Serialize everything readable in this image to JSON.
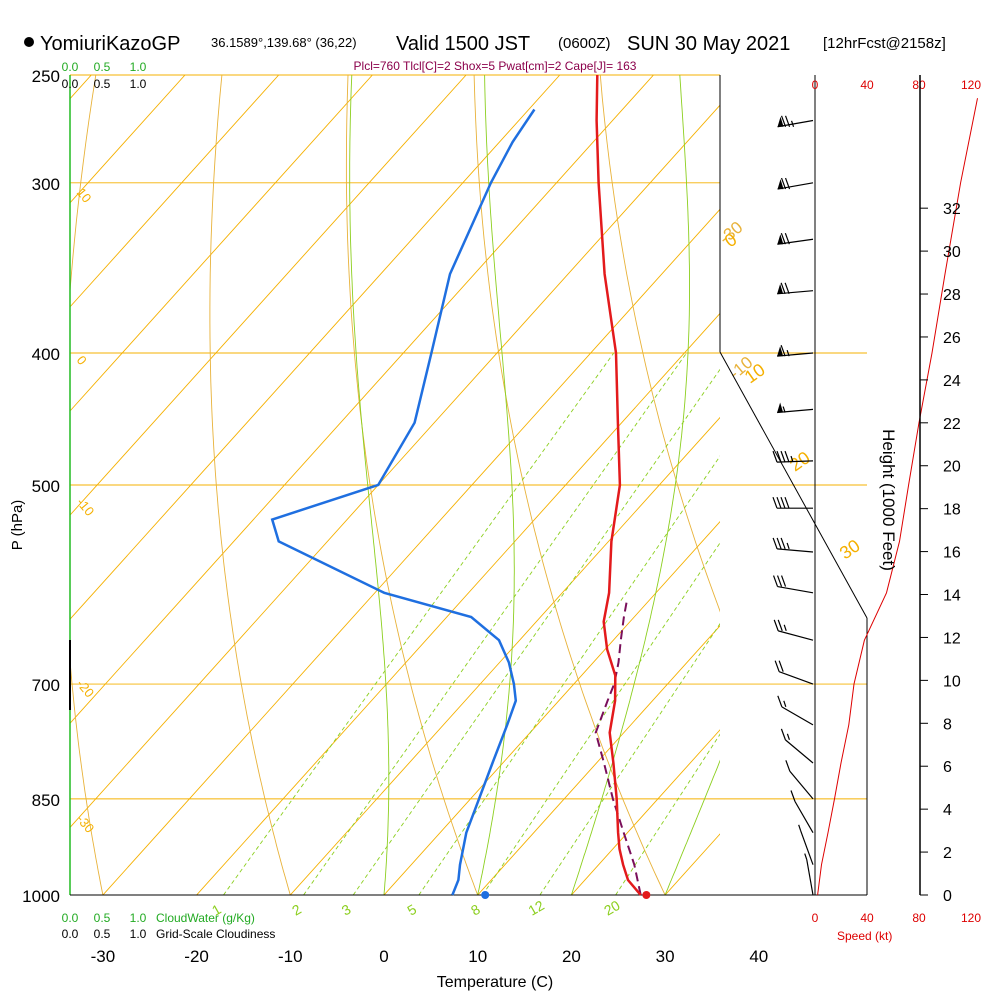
{
  "header": {
    "station": "YomiuriKazoGP",
    "coords": "36.1589°,139.68° (36,22)",
    "valid_prefix": "Valid 1500 JST",
    "valid_z": "(0600Z)",
    "valid_date": "SUN 30 May 2021",
    "forecast": "[12hrFcst@2158z]",
    "params": "Plcl=760 Tlcl[C]=2 Shox=5 Pwat[cm]=2 Cape[J]= 163"
  },
  "labels": {
    "ylabel": "P (hPa)",
    "xlabel": "Temperature (C)",
    "height_label": "Height (1000 Feet)",
    "speed_label": "Speed (kt)",
    "cloudwater_label": "CloudWater (g/Kg)",
    "cloudiness_label": "Grid-Scale Cloudiness",
    "cw_ticks": [
      "0.0",
      "0.5",
      "1.0"
    ],
    "cloud_ticks": [
      "0.0",
      "0.5",
      "1.0"
    ],
    "speed_ticks": [
      "0",
      "40",
      "80",
      "120"
    ]
  },
  "colors": {
    "temperature": "#e31a1c",
    "dewpoint": "#1f6fe0",
    "parcel": "#7a0f5a",
    "isotherm_isobar": "#f5b000",
    "dry_adiabat": "#e8b23a",
    "moist_adiabat": "#8ccf1f",
    "mixing_ratio": "#8ccf1f",
    "params_text": "#8b004b",
    "cloud_text": "#22aa22",
    "speed_text": "#dd0000"
  },
  "chart_data": {
    "type": "skew-t sounding",
    "xlim": [
      -35,
      36
    ],
    "pressure_range": [
      1000,
      250
    ],
    "x_ticks": [
      -30,
      -20,
      -10,
      0,
      10,
      20,
      30,
      40
    ],
    "pressure_ticks": [
      1000,
      850,
      700,
      500,
      400,
      300,
      250
    ],
    "height_ticks": [
      0,
      2,
      4,
      6,
      8,
      10,
      12,
      14,
      16,
      18,
      20,
      22,
      24,
      26,
      28,
      30,
      32
    ],
    "temperature": [
      {
        "p": 1000,
        "t": 27.4
      },
      {
        "p": 975,
        "t": 24.6
      },
      {
        "p": 950,
        "t": 22.6
      },
      {
        "p": 925,
        "t": 20.7
      },
      {
        "p": 900,
        "t": 19.0
      },
      {
        "p": 850,
        "t": 15.6
      },
      {
        "p": 800,
        "t": 11.8
      },
      {
        "p": 760,
        "t": 8.5
      },
      {
        "p": 720,
        "t": 6.0
      },
      {
        "p": 690,
        "t": 3.6
      },
      {
        "p": 660,
        "t": 0.2
      },
      {
        "p": 630,
        "t": -2.8
      },
      {
        "p": 600,
        "t": -5.0
      },
      {
        "p": 550,
        "t": -9.7
      },
      {
        "p": 500,
        "t": -14.2
      },
      {
        "p": 450,
        "t": -20.4
      },
      {
        "p": 400,
        "t": -27.3
      },
      {
        "p": 350,
        "t": -36.1
      },
      {
        "p": 300,
        "t": -45.5
      },
      {
        "p": 270,
        "t": -51.7
      },
      {
        "p": 250,
        "t": -56.0
      }
    ],
    "dewpoint": [
      {
        "p": 1000,
        "t": 7.3
      },
      {
        "p": 975,
        "t": 6.5
      },
      {
        "p": 950,
        "t": 5.2
      },
      {
        "p": 900,
        "t": 2.8
      },
      {
        "p": 850,
        "t": 0.9
      },
      {
        "p": 800,
        "t": -1.1
      },
      {
        "p": 750,
        "t": -3.2
      },
      {
        "p": 720,
        "t": -4.6
      },
      {
        "p": 700,
        "t": -6.4
      },
      {
        "p": 675,
        "t": -9.0
      },
      {
        "p": 650,
        "t": -12.2
      },
      {
        "p": 625,
        "t": -17.4
      },
      {
        "p": 600,
        "t": -29.0
      },
      {
        "p": 550,
        "t": -45.2
      },
      {
        "p": 530,
        "t": -48.0
      },
      {
        "p": 500,
        "t": -40.0
      },
      {
        "p": 450,
        "t": -42.1
      },
      {
        "p": 400,
        "t": -47.0
      },
      {
        "p": 350,
        "t": -52.6
      },
      {
        "p": 300,
        "t": -57.0
      },
      {
        "p": 280,
        "t": -58.6
      },
      {
        "p": 265,
        "t": -59.4
      }
    ],
    "parcel": [
      {
        "p": 1000,
        "t": 27.4
      },
      {
        "p": 950,
        "t": 23.8
      },
      {
        "p": 900,
        "t": 19.6
      },
      {
        "p": 850,
        "t": 15.2
      },
      {
        "p": 800,
        "t": 10.8
      },
      {
        "p": 760,
        "t": 7.0
      },
      {
        "p": 720,
        "t": 5.2
      },
      {
        "p": 700,
        "t": 4.3
      },
      {
        "p": 675,
        "t": 2.7
      },
      {
        "p": 650,
        "t": 0.8
      },
      {
        "p": 625,
        "t": -1.1
      },
      {
        "p": 610,
        "t": -2.2
      }
    ],
    "surface_temperature": 28.0,
    "surface_dewpoint": 10.8,
    "dry_adiabats": [
      -30,
      -10,
      10,
      30,
      50,
      70,
      90,
      110,
      130
    ],
    "dry_adiabat_labels": [
      "-30",
      "-10",
      "10",
      "30"
    ],
    "moist_adiabats": [
      0,
      10,
      20,
      30
    ],
    "moist_adiabat_labels": [
      "0",
      "10",
      "20",
      "30"
    ],
    "mixing_ratios": [
      1,
      2,
      3,
      5,
      8,
      12,
      20
    ],
    "mixing_ratio_labels": [
      "1",
      "2",
      "3",
      "5",
      "8",
      "12",
      "20"
    ],
    "isotherm_labels": [
      "10",
      "0",
      "-10",
      "-20",
      "-30"
    ],
    "isotherm_label_values": [
      10,
      0,
      -10,
      -20,
      -30
    ],
    "isotherm_label_pressures": [
      305,
      405,
      515,
      700,
      880
    ],
    "wind": [
      {
        "p": 270,
        "speed": 75,
        "dir": 260
      },
      {
        "p": 300,
        "speed": 70,
        "dir": 260
      },
      {
        "p": 330,
        "speed": 72,
        "dir": 262
      },
      {
        "p": 360,
        "speed": 70,
        "dir": 265
      },
      {
        "p": 400,
        "speed": 65,
        "dir": 265
      },
      {
        "p": 440,
        "speed": 55,
        "dir": 265
      },
      {
        "p": 480,
        "speed": 45,
        "dir": 268
      },
      {
        "p": 520,
        "speed": 40,
        "dir": 270
      },
      {
        "p": 560,
        "speed": 35,
        "dir": 275
      },
      {
        "p": 600,
        "speed": 30,
        "dir": 280
      },
      {
        "p": 650,
        "speed": 25,
        "dir": 285
      },
      {
        "p": 700,
        "speed": 20,
        "dir": 290
      },
      {
        "p": 750,
        "speed": 18,
        "dir": 300
      },
      {
        "p": 800,
        "speed": 15,
        "dir": 310
      },
      {
        "p": 850,
        "speed": 12,
        "dir": 320
      },
      {
        "p": 900,
        "speed": 10,
        "dir": 330
      },
      {
        "p": 950,
        "speed": 8,
        "dir": 340
      },
      {
        "p": 1000,
        "speed": 5,
        "dir": 350
      }
    ],
    "speed_profile": [
      {
        "p": 1000,
        "kt": 2
      },
      {
        "p": 950,
        "kt": 5
      },
      {
        "p": 900,
        "kt": 10
      },
      {
        "p": 850,
        "kt": 15
      },
      {
        "p": 800,
        "kt": 20
      },
      {
        "p": 750,
        "kt": 26
      },
      {
        "p": 700,
        "kt": 30
      },
      {
        "p": 650,
        "kt": 38
      },
      {
        "p": 600,
        "kt": 55
      },
      {
        "p": 550,
        "kt": 65
      },
      {
        "p": 500,
        "kt": 72
      },
      {
        "p": 450,
        "kt": 80
      },
      {
        "p": 400,
        "kt": 90
      },
      {
        "p": 350,
        "kt": 100
      },
      {
        "p": 300,
        "kt": 112
      },
      {
        "p": 260,
        "kt": 125
      }
    ]
  }
}
